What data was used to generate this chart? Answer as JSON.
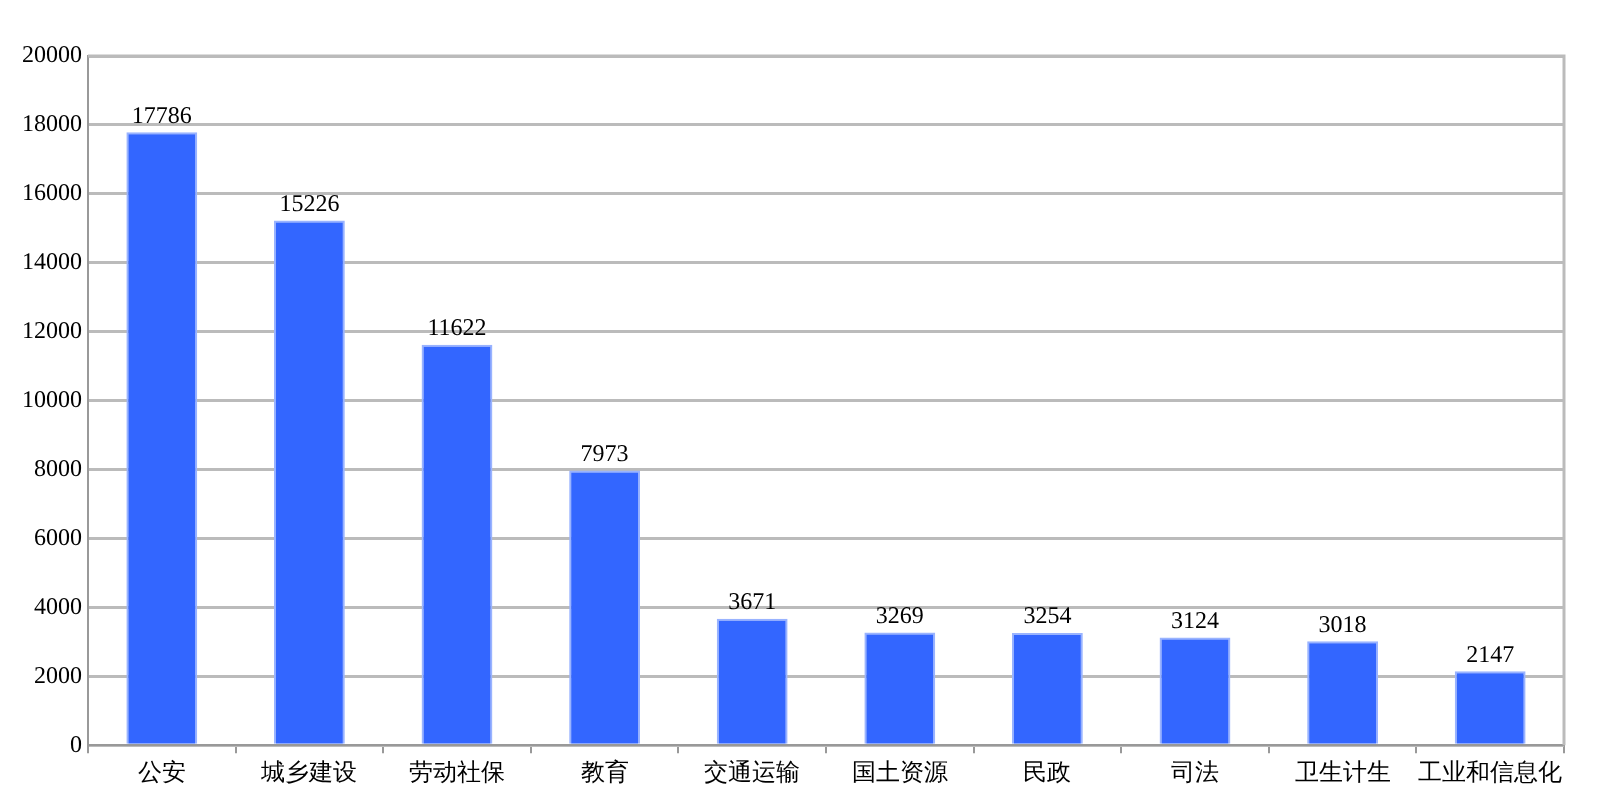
{
  "chart_data": {
    "type": "bar",
    "categories": [
      "公安",
      "城乡建设",
      "劳动社保",
      "教育",
      "交通运输",
      "国土资源",
      "民政",
      "司法",
      "卫生计生",
      "工业和信息化"
    ],
    "values": [
      17786,
      15226,
      11622,
      7973,
      3671,
      3269,
      3254,
      3124,
      3018,
      2147
    ],
    "color": "#3366ff",
    "ylim": [
      0,
      20000
    ],
    "yticks": [
      0,
      2000,
      4000,
      6000,
      8000,
      10000,
      12000,
      14000,
      16000,
      18000,
      20000
    ],
    "grid": "y",
    "data_labels": true
  }
}
